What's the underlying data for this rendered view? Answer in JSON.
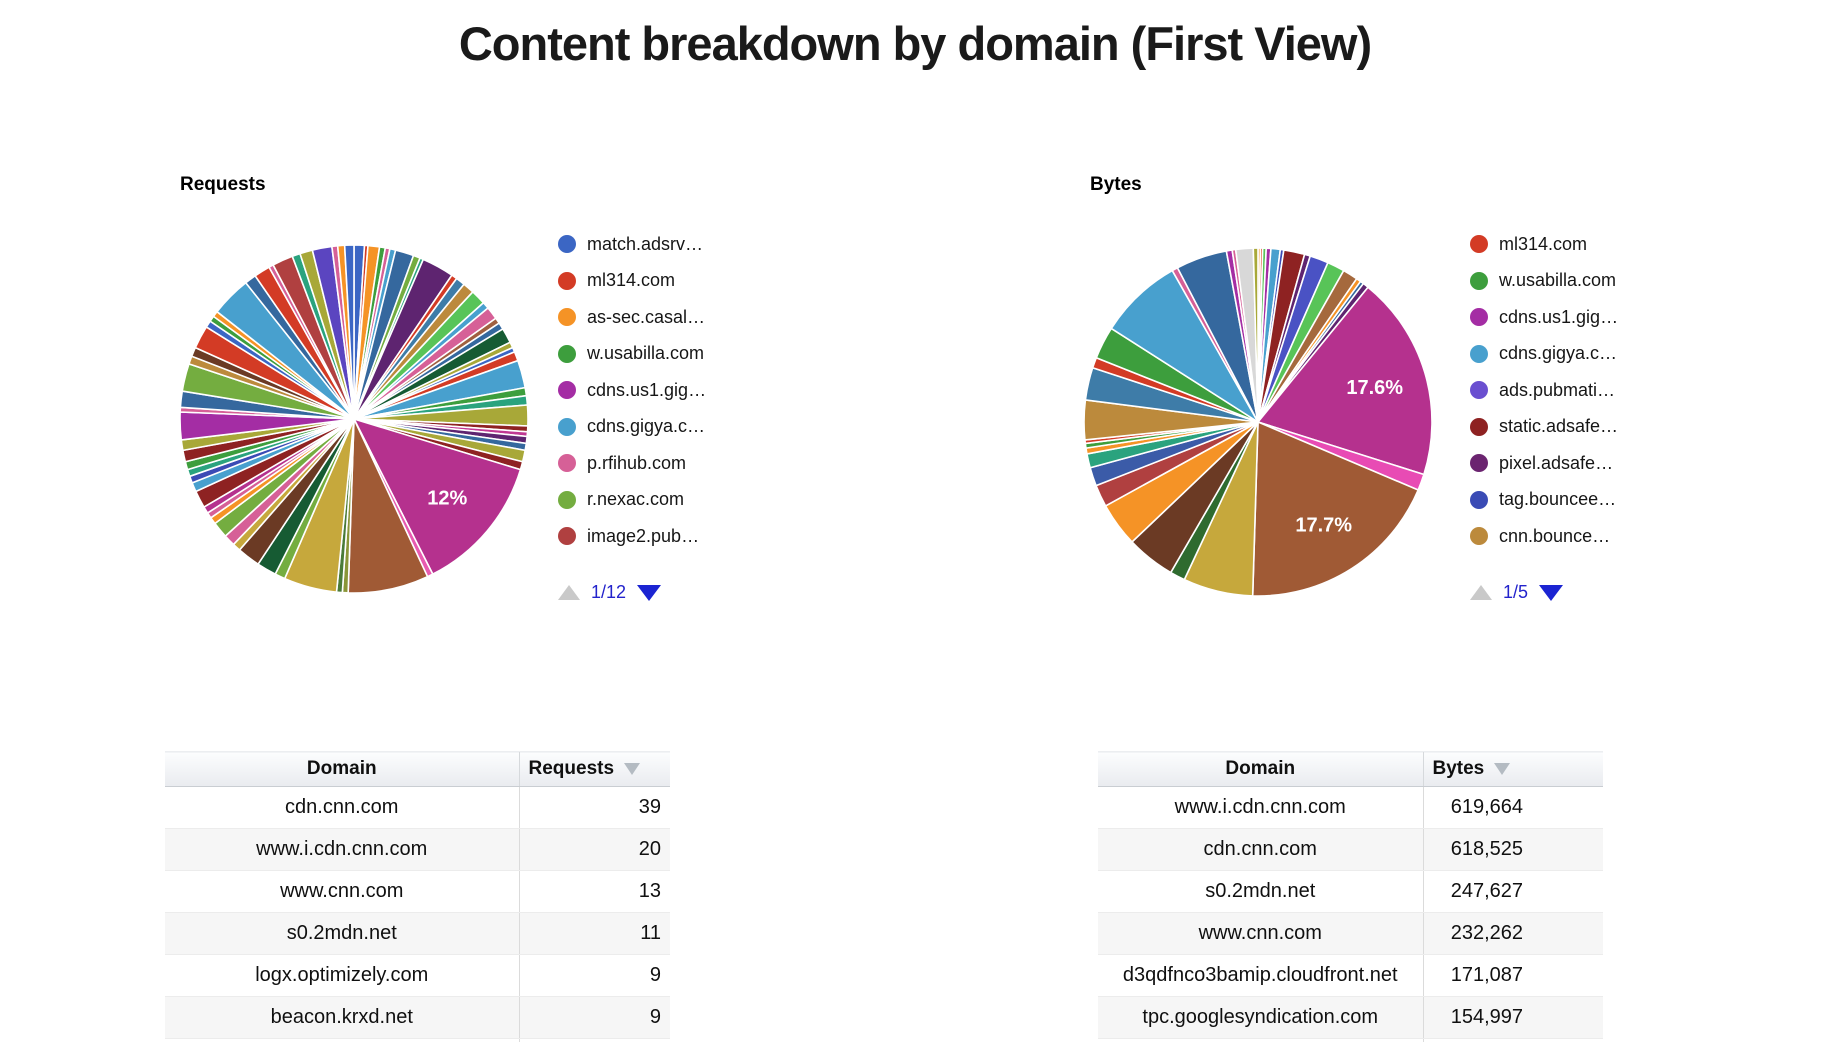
{
  "title": "Content breakdown by domain (First View)",
  "colors": {
    "pager_link_blue": "#2323CC",
    "pager_disabled_gray": "#C9C9C9",
    "sort_arrow_gray": "#B4BBC2",
    "requests_big_slice_magenta": "#B5318E",
    "bytes_big_slice_brown": "#A05A35"
  },
  "chart_data": [
    {
      "type": "pie",
      "title": "Requests",
      "legend_position": "right",
      "legend_page": "1/12",
      "legend_entries": [
        {
          "label": "match.adsrv…",
          "color": "#3B66C4"
        },
        {
          "label": "ml314.com",
          "color": "#D33B25"
        },
        {
          "label": "as-sec.casal…",
          "color": "#F59326"
        },
        {
          "label": "w.usabilla.com",
          "color": "#3D9E3D"
        },
        {
          "label": "cdns.us1.gig…",
          "color": "#A42DA4"
        },
        {
          "label": "cdns.gigya.c…",
          "color": "#48A0CE"
        },
        {
          "label": "p.rfihub.com",
          "color": "#D66097"
        },
        {
          "label": "r.nexac.com",
          "color": "#74AD40"
        },
        {
          "label": "image2.pub…",
          "color": "#B04040"
        }
      ],
      "labeled_slices": [
        {
          "label": "12%",
          "color": "#B5318E"
        }
      ],
      "slices": [
        [
          0.9,
          "#3B66C4"
        ],
        [
          0.3,
          "#D33B25"
        ],
        [
          1.0,
          "#F59326"
        ],
        [
          0.5,
          "#3D9E3D"
        ],
        [
          0.4,
          "#D66097"
        ],
        [
          0.5,
          "#48A0CE"
        ],
        [
          1.6,
          "#35689E"
        ],
        [
          0.6,
          "#74AD40"
        ],
        [
          0.3,
          "#2AA37E"
        ],
        [
          2.8,
          "#5E2470"
        ],
        [
          0.5,
          "#D33B25"
        ],
        [
          0.8,
          "#3E7CA8"
        ],
        [
          1.0,
          "#BC8A3C"
        ],
        [
          1.3,
          "#58C458"
        ],
        [
          0.6,
          "#48A0CE"
        ],
        [
          1.1,
          "#D66097"
        ],
        [
          0.5,
          "#A06040"
        ],
        [
          0.6,
          "#35689E"
        ],
        [
          1.3,
          "#165B33"
        ],
        [
          0.5,
          "#A8A838"
        ],
        [
          0.4,
          "#3B66C4"
        ],
        [
          0.8,
          "#D33B25"
        ],
        [
          2.4,
          "#48A0CE"
        ],
        [
          0.7,
          "#3D9E3D"
        ],
        [
          0.8,
          "#2AA37E"
        ],
        [
          1.8,
          "#A8A838"
        ],
        [
          0.5,
          "#8E2222"
        ],
        [
          0.4,
          "#C03893"
        ],
        [
          0.6,
          "#5E2470"
        ],
        [
          0.6,
          "#35689E"
        ],
        [
          1.0,
          "#A8A838"
        ],
        [
          0.7,
          "#8E2222"
        ],
        [
          12.0,
          "#B5318E",
          "12%"
        ],
        [
          0.5,
          "#E85BB0"
        ],
        [
          7.0,
          "#A05A35"
        ],
        [
          0.5,
          "#8A9638"
        ],
        [
          0.5,
          "#4A7B38"
        ],
        [
          4.6,
          "#C6A83C"
        ],
        [
          0.9,
          "#74AD40"
        ],
        [
          1.7,
          "#165B33"
        ],
        [
          2.0,
          "#6B3A24"
        ],
        [
          0.7,
          "#C6A83C"
        ],
        [
          1.0,
          "#D66097"
        ],
        [
          1.4,
          "#74AD40"
        ],
        [
          0.6,
          "#F59326"
        ],
        [
          0.5,
          "#D66097"
        ],
        [
          0.6,
          "#B5318E"
        ],
        [
          1.5,
          "#8E2222"
        ],
        [
          0.8,
          "#48A0CE"
        ],
        [
          0.6,
          "#3B4BB5"
        ],
        [
          0.6,
          "#2AA37E"
        ],
        [
          0.7,
          "#3D9E3D"
        ],
        [
          1.0,
          "#8E2222"
        ],
        [
          0.9,
          "#A8A838"
        ],
        [
          2.4,
          "#A42DA4"
        ],
        [
          0.4,
          "#D66097"
        ],
        [
          1.4,
          "#35689E"
        ],
        [
          2.4,
          "#74AD40"
        ],
        [
          0.7,
          "#BC8A3C"
        ],
        [
          0.8,
          "#6B3A24"
        ],
        [
          2.0,
          "#D33B25"
        ],
        [
          0.6,
          "#3B66C4"
        ],
        [
          0.5,
          "#3D9E3D"
        ],
        [
          0.5,
          "#F59326"
        ],
        [
          3.5,
          "#48A0CE"
        ],
        [
          1.0,
          "#35689E"
        ],
        [
          1.4,
          "#D33B25"
        ],
        [
          0.4,
          "#D66097"
        ],
        [
          1.8,
          "#B04040"
        ],
        [
          0.7,
          "#2AA37E"
        ],
        [
          1.1,
          "#A8A838"
        ],
        [
          1.7,
          "#5B45C0"
        ],
        [
          0.5,
          "#D66097"
        ],
        [
          0.6,
          "#F59326"
        ],
        [
          0.8,
          "#3B66C4"
        ]
      ]
    },
    {
      "type": "pie",
      "title": "Bytes",
      "legend_position": "right",
      "legend_page": "1/5",
      "legend_entries": [
        {
          "label": "ml314.com",
          "color": "#D33B25"
        },
        {
          "label": "w.usabilla.com",
          "color": "#3D9E3D"
        },
        {
          "label": "cdns.us1.gig…",
          "color": "#A42DA4"
        },
        {
          "label": "cdns.gigya.c…",
          "color": "#48A0CE"
        },
        {
          "label": "ads.pubmati…",
          "color": "#6A4FD0"
        },
        {
          "label": "static.adsafe…",
          "color": "#8E2222"
        },
        {
          "label": "pixel.adsafe…",
          "color": "#6B2470"
        },
        {
          "label": "tag.bouncee…",
          "color": "#3A4BB5"
        },
        {
          "label": "cnn.bounce…",
          "color": "#BC8A3C"
        }
      ],
      "labeled_slices": [
        {
          "label": "17.6%",
          "color": "#B5318E"
        },
        {
          "label": "17.7%",
          "color": "#A05A35"
        }
      ],
      "slices": [
        [
          0.2,
          "#F59326"
        ],
        [
          0.2,
          "#DC3912"
        ],
        [
          0.3,
          "#58C458"
        ],
        [
          0.4,
          "#A42DA4"
        ],
        [
          0.8,
          "#48A0CE"
        ],
        [
          0.3,
          "#3B4BB5"
        ],
        [
          1.8,
          "#8E2222"
        ],
        [
          0.5,
          "#5E2470"
        ],
        [
          1.6,
          "#4A52C4"
        ],
        [
          1.5,
          "#58C458"
        ],
        [
          1.3,
          "#A5693D"
        ],
        [
          0.4,
          "#F59326"
        ],
        [
          0.3,
          "#35689E"
        ],
        [
          0.5,
          "#5E2470"
        ],
        [
          17.6,
          "#B5318E",
          "17.6%"
        ],
        [
          1.4,
          "#E84BB4"
        ],
        [
          17.7,
          "#A05A35",
          "17.7%"
        ],
        [
          6.0,
          "#C6A83C"
        ],
        [
          1.3,
          "#2F6B2F"
        ],
        [
          4.2,
          "#6B3A24"
        ],
        [
          3.8,
          "#F59326"
        ],
        [
          1.9,
          "#B04040"
        ],
        [
          1.6,
          "#3B5BA8"
        ],
        [
          1.2,
          "#2AA37E"
        ],
        [
          0.5,
          "#F59326"
        ],
        [
          0.4,
          "#3D9E3D"
        ],
        [
          0.3,
          "#D33B25"
        ],
        [
          3.4,
          "#BC8A3C"
        ],
        [
          2.8,
          "#3E7CA8"
        ],
        [
          0.9,
          "#D33B25"
        ],
        [
          2.8,
          "#3D9E3D"
        ],
        [
          7.2,
          "#48A0CE"
        ],
        [
          0.5,
          "#D66097"
        ],
        [
          4.4,
          "#35689E"
        ],
        [
          0.5,
          "#A42DA4"
        ],
        [
          0.3,
          "#D66097"
        ],
        [
          1.5,
          "#D8D8D8"
        ],
        [
          0.4,
          "#A8A838"
        ]
      ]
    },
    {
      "type": "table",
      "headers": [
        "Domain",
        "Requests"
      ],
      "sorted_by": "Requests",
      "sort_order": "desc",
      "rows": [
        [
          "cdn.cnn.com",
          "39"
        ],
        [
          "www.i.cdn.cnn.com",
          "20"
        ],
        [
          "www.cnn.com",
          "13"
        ],
        [
          "s0.2mdn.net",
          "11"
        ],
        [
          "logx.optimizely.com",
          "9"
        ],
        [
          "beacon.krxd.net",
          "9"
        ]
      ]
    },
    {
      "type": "table",
      "headers": [
        "Domain",
        "Bytes"
      ],
      "sorted_by": "Bytes",
      "sort_order": "desc",
      "rows": [
        [
          "www.i.cdn.cnn.com",
          "619,664"
        ],
        [
          "cdn.cnn.com",
          "618,525"
        ],
        [
          "s0.2mdn.net",
          "247,627"
        ],
        [
          "www.cnn.com",
          "232,262"
        ],
        [
          "d3qdfnco3bamip.cloudfront.net",
          "171,087"
        ],
        [
          "tpc.googlesyndication.com",
          "154,997"
        ]
      ]
    }
  ]
}
